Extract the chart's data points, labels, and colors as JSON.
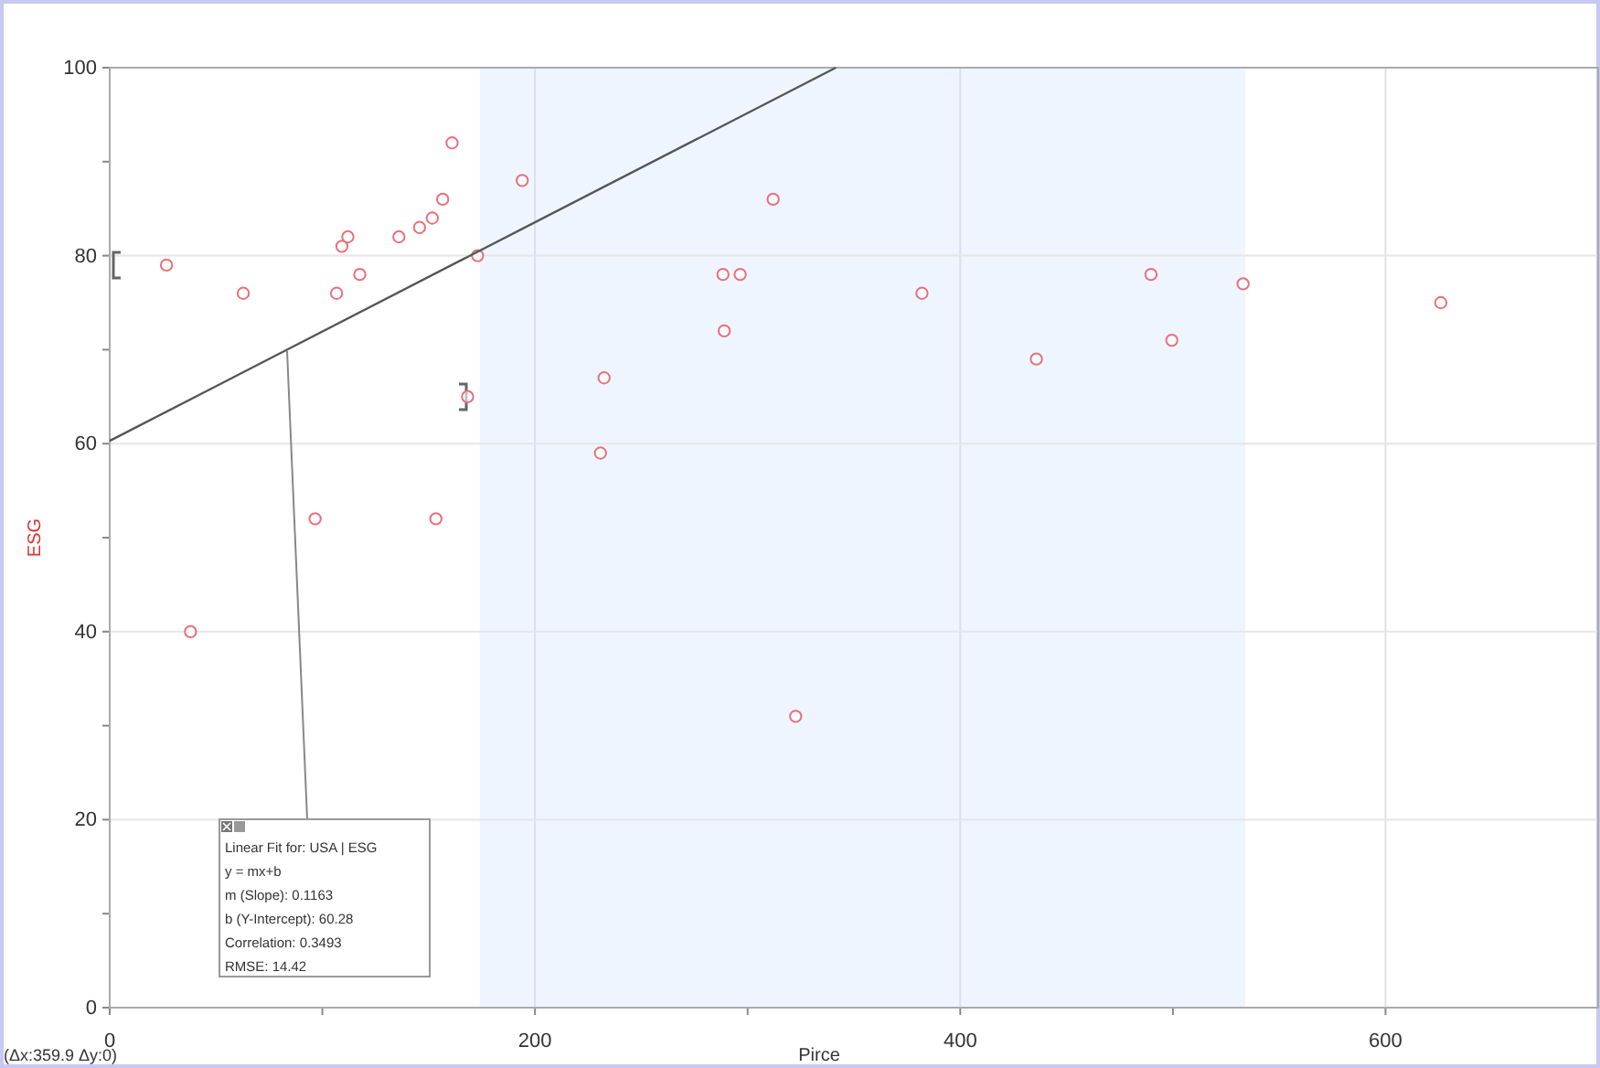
{
  "chart_data": {
    "type": "scatter",
    "xlabel": "Pirce",
    "ylabel": "ESG",
    "xlim": [
      0,
      700
    ],
    "ylim": [
      0,
      100
    ],
    "xticks": [
      0,
      {
        "value": 100,
        "label": null
      },
      200,
      {
        "value": 300,
        "label": null
      },
      400,
      {
        "value": 500,
        "label": null
      },
      600
    ],
    "yticks": [
      0,
      {
        "value": 10,
        "label": null
      },
      20,
      {
        "value": 30,
        "label": null
      },
      40,
      {
        "value": 50,
        "label": null
      },
      60,
      {
        "value": 70,
        "label": null
      },
      80,
      {
        "value": 90,
        "label": null
      },
      100
    ],
    "grid": true,
    "series": [
      {
        "marker": "circle",
        "color": "#e8707a",
        "x": [
          26.7,
          38,
          62.8,
          96.6,
          106.7,
          109.2,
          112,
          117.6,
          136,
          145.7,
          151.7,
          156.6,
          161,
          153.4,
          168.3,
          173,
          194,
          232.5,
          230.8,
          288.4,
          296.5,
          289,
          312,
          382,
          322.6,
          435.8,
          489.7,
          499.5,
          533,
          626
        ],
        "values": [
          79,
          40,
          76,
          52,
          76,
          81,
          82,
          78,
          82,
          83,
          84,
          86,
          92,
          52,
          65,
          80,
          88,
          67,
          59,
          78,
          78,
          72,
          86,
          76,
          31,
          69,
          78,
          71,
          77,
          75
        ]
      },
      {
        "type": "line",
        "color": "#555555",
        "x": [
          0,
          341.5
        ],
        "values": [
          60.3,
          100
        ]
      }
    ],
    "bands": [
      {
        "axis": "x",
        "from": 174,
        "to": 534,
        "color": "#eef5fe"
      }
    ],
    "annotations": [
      "Linear Fit for: USA | ESG",
      "y = mx+b",
      "m (Slope): 0.1163",
      "b (Y-Intercept): 60.28",
      "Correlation: 0.3493",
      "RMSE: 14.42",
      "(Δx:359.9 Δy:0)"
    ]
  }
}
